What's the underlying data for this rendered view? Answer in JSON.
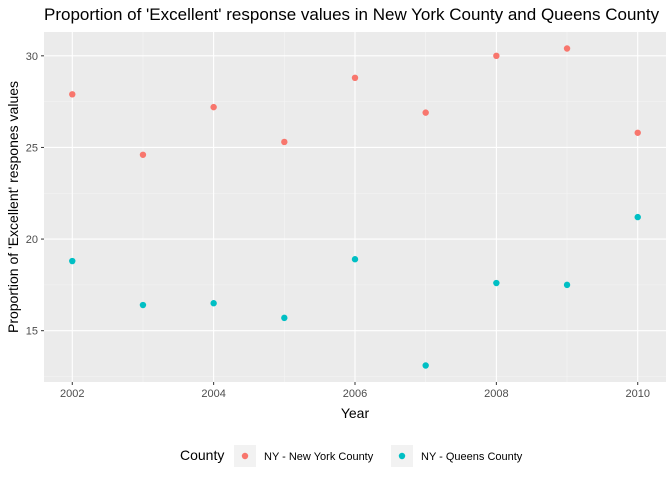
{
  "chart_data": {
    "type": "scatter",
    "title": "Proportion of 'Excellent' response values in New York County and Queens County",
    "xlabel": "Year",
    "ylabel": "Proportion of 'Excellent' respones values",
    "xlim": [
      2001.6,
      2010.4
    ],
    "ylim": [
      12.2,
      31.3
    ],
    "x_ticks": [
      2002,
      2004,
      2006,
      2008,
      2010
    ],
    "y_ticks": [
      15,
      20,
      25,
      30
    ],
    "grid": true,
    "legend": {
      "title": "County",
      "position": "bottom"
    },
    "series": [
      {
        "name": "NY - New York County",
        "color": "#F8766D",
        "points": [
          {
            "x": 2002,
            "y": 27.9
          },
          {
            "x": 2003,
            "y": 24.6
          },
          {
            "x": 2004,
            "y": 27.2
          },
          {
            "x": 2005,
            "y": 25.3
          },
          {
            "x": 2006,
            "y": 28.8
          },
          {
            "x": 2007,
            "y": 26.9
          },
          {
            "x": 2008,
            "y": 30.0
          },
          {
            "x": 2009,
            "y": 30.4
          },
          {
            "x": 2010,
            "y": 25.8
          }
        ]
      },
      {
        "name": "NY - Queens County",
        "color": "#00BFC4",
        "points": [
          {
            "x": 2002,
            "y": 18.8
          },
          {
            "x": 2003,
            "y": 16.4
          },
          {
            "x": 2004,
            "y": 16.5
          },
          {
            "x": 2005,
            "y": 15.7
          },
          {
            "x": 2006,
            "y": 18.9
          },
          {
            "x": 2007,
            "y": 13.1
          },
          {
            "x": 2008,
            "y": 17.6
          },
          {
            "x": 2009,
            "y": 17.5
          },
          {
            "x": 2010,
            "y": 21.2
          }
        ]
      }
    ]
  }
}
